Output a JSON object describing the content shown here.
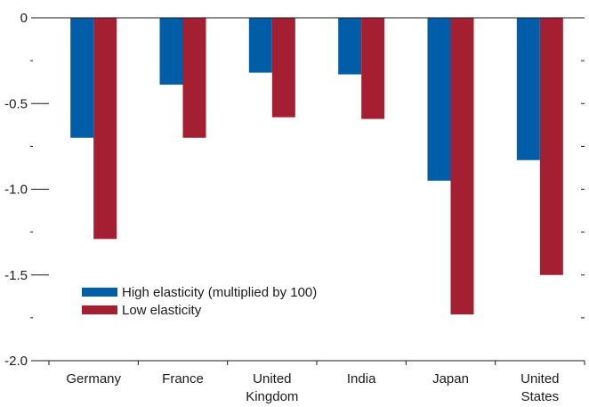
{
  "chart_data": {
    "type": "bar",
    "categories": [
      [
        "Germany"
      ],
      [
        "France"
      ],
      [
        "United",
        "Kingdom"
      ],
      [
        "India"
      ],
      [
        "Japan"
      ],
      [
        "United",
        "States"
      ]
    ],
    "series": [
      {
        "name": "High elasticity (multiplied by 100)",
        "color": "#005da7",
        "values": [
          -0.7,
          -0.39,
          -0.32,
          -0.33,
          -0.95,
          -0.83
        ]
      },
      {
        "name": "Low elasticity",
        "color": "#a51f32",
        "values": [
          -1.29,
          -0.7,
          -0.58,
          -0.59,
          -1.73,
          -1.5
        ]
      }
    ],
    "ylim": [
      -2.0,
      0
    ],
    "yticks": [
      "0",
      "-0.5",
      "-1.0",
      "-1.5",
      "-2.0"
    ],
    "ytick_values": [
      0,
      -0.5,
      -1.0,
      -1.5,
      -2.0
    ],
    "ytick_minor_values": [
      -0.25,
      -0.75,
      -1.25,
      -1.75
    ],
    "grid": false,
    "legend_position": "bottom-left",
    "title": "",
    "xlabel": "",
    "ylabel": ""
  }
}
